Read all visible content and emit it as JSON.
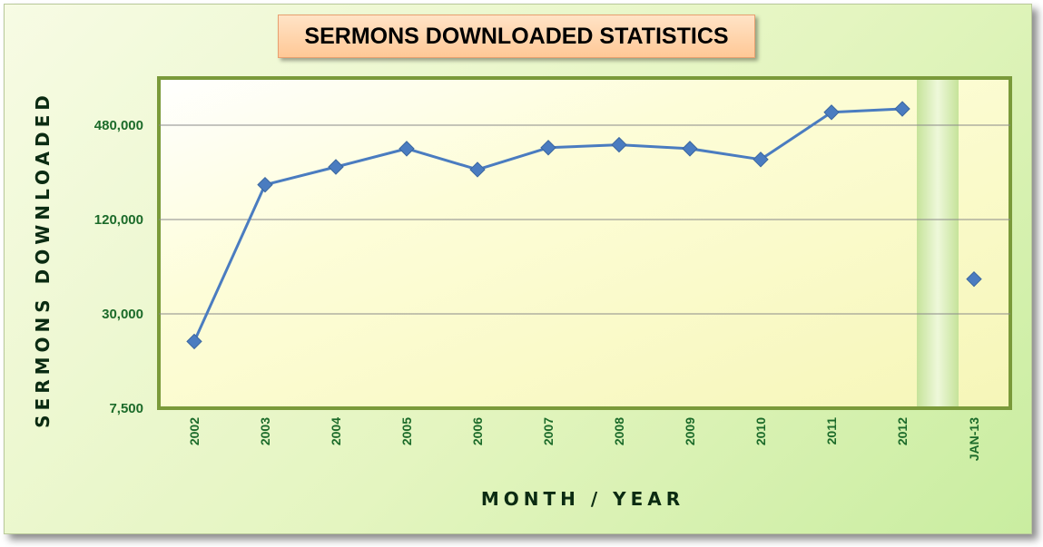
{
  "chart_data": {
    "type": "line",
    "title": "SERMONS DOWNLOADED STATISTICS",
    "xlabel": "MONTH / YEAR",
    "ylabel": "SERMONS DOWNLOADED",
    "y_scale": "log",
    "ylim": [
      7500,
      960000
    ],
    "y_ticks": [
      {
        "value": 7500,
        "label": "7,500"
      },
      {
        "value": 30000,
        "label": "30,000"
      },
      {
        "value": 120000,
        "label": "120,000"
      },
      {
        "value": 480000,
        "label": "480,000"
      }
    ],
    "grid": true,
    "legend": "none",
    "categories": [
      "2002",
      "2003",
      "2004",
      "2005",
      "2006",
      "2007",
      "2008",
      "2009",
      "2010",
      "2011",
      "2012",
      "JAN-13"
    ],
    "series": [
      {
        "values": [
          20000,
          200000,
          260000,
          340000,
          250000,
          345000,
          360000,
          340000,
          290000,
          580000,
          610000,
          null
        ],
        "color": "#4a7cc0"
      },
      {
        "values": [
          null,
          null,
          null,
          null,
          null,
          null,
          null,
          null,
          null,
          null,
          null,
          50000
        ],
        "color": "#4a7cc0"
      }
    ],
    "colors": {
      "plot_background": "#fdfdd8",
      "plot_border": "#7a9a3a",
      "gridline": "#8a8a8a",
      "tick_label": "#1c6b2a",
      "separator_band": "#d6eeb0"
    }
  }
}
